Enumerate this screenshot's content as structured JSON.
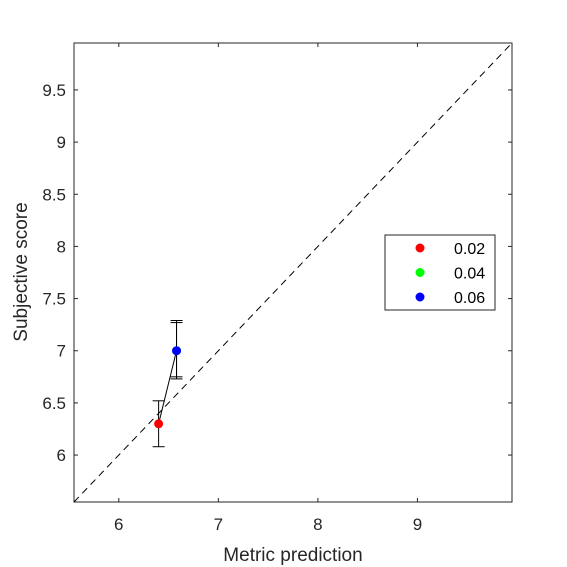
{
  "chart_data": {
    "type": "scatter",
    "title": "",
    "xlabel": "Metric prediction",
    "ylabel": "Subjective score",
    "xlim": [
      5.55,
      9.95
    ],
    "ylim": [
      5.55,
      9.95
    ],
    "x_ticks": [
      6,
      7,
      8,
      9
    ],
    "y_ticks": [
      6,
      6.5,
      7,
      7.5,
      8,
      8.5,
      9,
      9.5
    ],
    "x_tick_labels": [
      "6",
      "7",
      "8",
      "9"
    ],
    "y_tick_labels": [
      "6",
      "6.5",
      "7",
      "7.5",
      "8",
      "8.5",
      "9",
      "9.5"
    ],
    "grid": false,
    "reference_line": {
      "style": "dashed",
      "from": [
        5.55,
        5.55
      ],
      "to": [
        9.95,
        9.95
      ]
    },
    "connecting_line": true,
    "legend_position": "right",
    "series": [
      {
        "name": "0.02",
        "color": "#ff0000",
        "x": 6.4,
        "y": 6.3,
        "err_low": 6.08,
        "err_high": 6.52
      },
      {
        "name": "0.04",
        "color": "#00ff00",
        "x": 6.58,
        "y": 7.0,
        "err_low": 6.73,
        "err_high": 7.27
      },
      {
        "name": "0.06",
        "color": "#0000ff",
        "x": 6.58,
        "y": 7.0,
        "err_low": 6.75,
        "err_high": 7.29
      }
    ]
  }
}
